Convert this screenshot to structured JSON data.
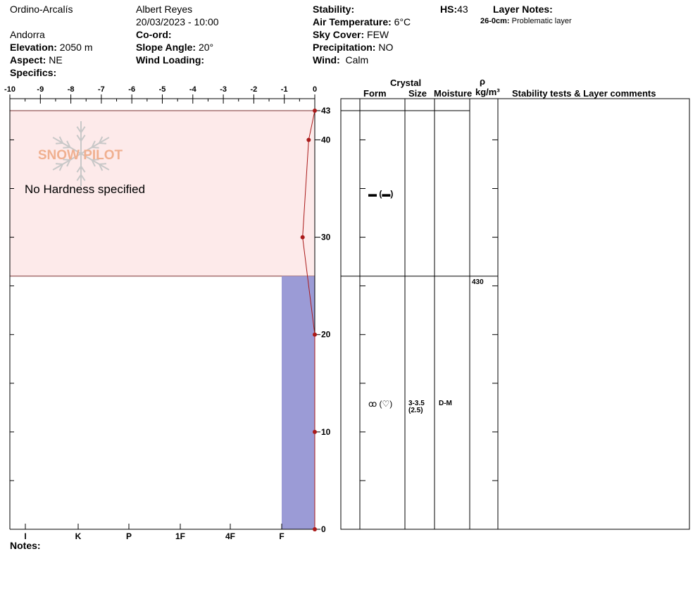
{
  "header": {
    "location": "Ordino-Arcalís",
    "country": "Andorra",
    "observer": "Albert Reyes",
    "datetime": "20/03/2023 - 10:00",
    "elevation_label": "Elevation:",
    "elevation_value": "2050 m",
    "aspect_label": "Aspect:",
    "aspect_value": "NE",
    "specifics_label": "Specifics:",
    "coord_label": "Co-ord:",
    "slope_label": "Slope Angle:",
    "slope_value": "20°",
    "wind_loading_label": "Wind Loading:",
    "stability_label": "Stability:",
    "air_temp_label": "Air Temperature:",
    "air_temp_value": "6°C",
    "sky_label": "Sky Cover:",
    "sky_value": "FEW",
    "precip_label": "Precipitation:",
    "precip_value": "NO",
    "wind_label": "Wind:",
    "wind_value": "Calm",
    "hs_label": "HS:",
    "hs_value": "43",
    "layer_notes_label": "Layer Notes:",
    "layer_note_depth": "26-0cm:",
    "layer_note_text": "Problematic layer"
  },
  "columns": {
    "crystal": "Crystal",
    "form": "Form",
    "size": "Size",
    "moisture": "Moisture",
    "rho": "ρ",
    "density_unit": "kg/m³",
    "comments": "Stability tests & Layer comments"
  },
  "watermark": {
    "text": "SNOW PILOT",
    "color": "#f0b090"
  },
  "notes_label": "Notes:",
  "no_hardness_text": "No Hardness specified",
  "colors": {
    "upper_layer": "#fdeaea",
    "lower_layer": "#9b9bd6",
    "temp_line": "#aa1a1a",
    "border": "#7a3030"
  },
  "chart_data": {
    "type": "snow-profile",
    "hs": 43,
    "temperature_axis": {
      "ticks": [
        -10,
        -9,
        -8,
        -7,
        -6,
        -5,
        -4,
        -3,
        -2,
        -1,
        0
      ],
      "range": [
        -10,
        0
      ]
    },
    "hardness_axis": {
      "ticks": [
        "I",
        "K",
        "P",
        "1F",
        "4F",
        "F"
      ]
    },
    "height_axis": {
      "range": [
        0,
        43
      ],
      "labels": [
        0,
        10,
        20,
        30,
        40,
        43
      ]
    },
    "temperature_profile": [
      {
        "height": 43,
        "temp": 0
      },
      {
        "height": 40,
        "temp": -0.2
      },
      {
        "height": 30,
        "temp": -0.4
      },
      {
        "height": 20,
        "temp": 0
      },
      {
        "height": 10,
        "temp": 0
      },
      {
        "height": 0,
        "temp": 0
      }
    ],
    "layers": [
      {
        "top": 43,
        "bottom": 26,
        "hardness": null,
        "grain_form": "▬ (▬)",
        "size": "",
        "moisture": "",
        "density": ""
      },
      {
        "top": 26,
        "bottom": 0,
        "hardness": "F",
        "grain_form": "ꝏ (♡)",
        "size": "3-3.5",
        "size_alt": "(2.5)",
        "moisture": "D-M",
        "density": "430"
      }
    ]
  }
}
